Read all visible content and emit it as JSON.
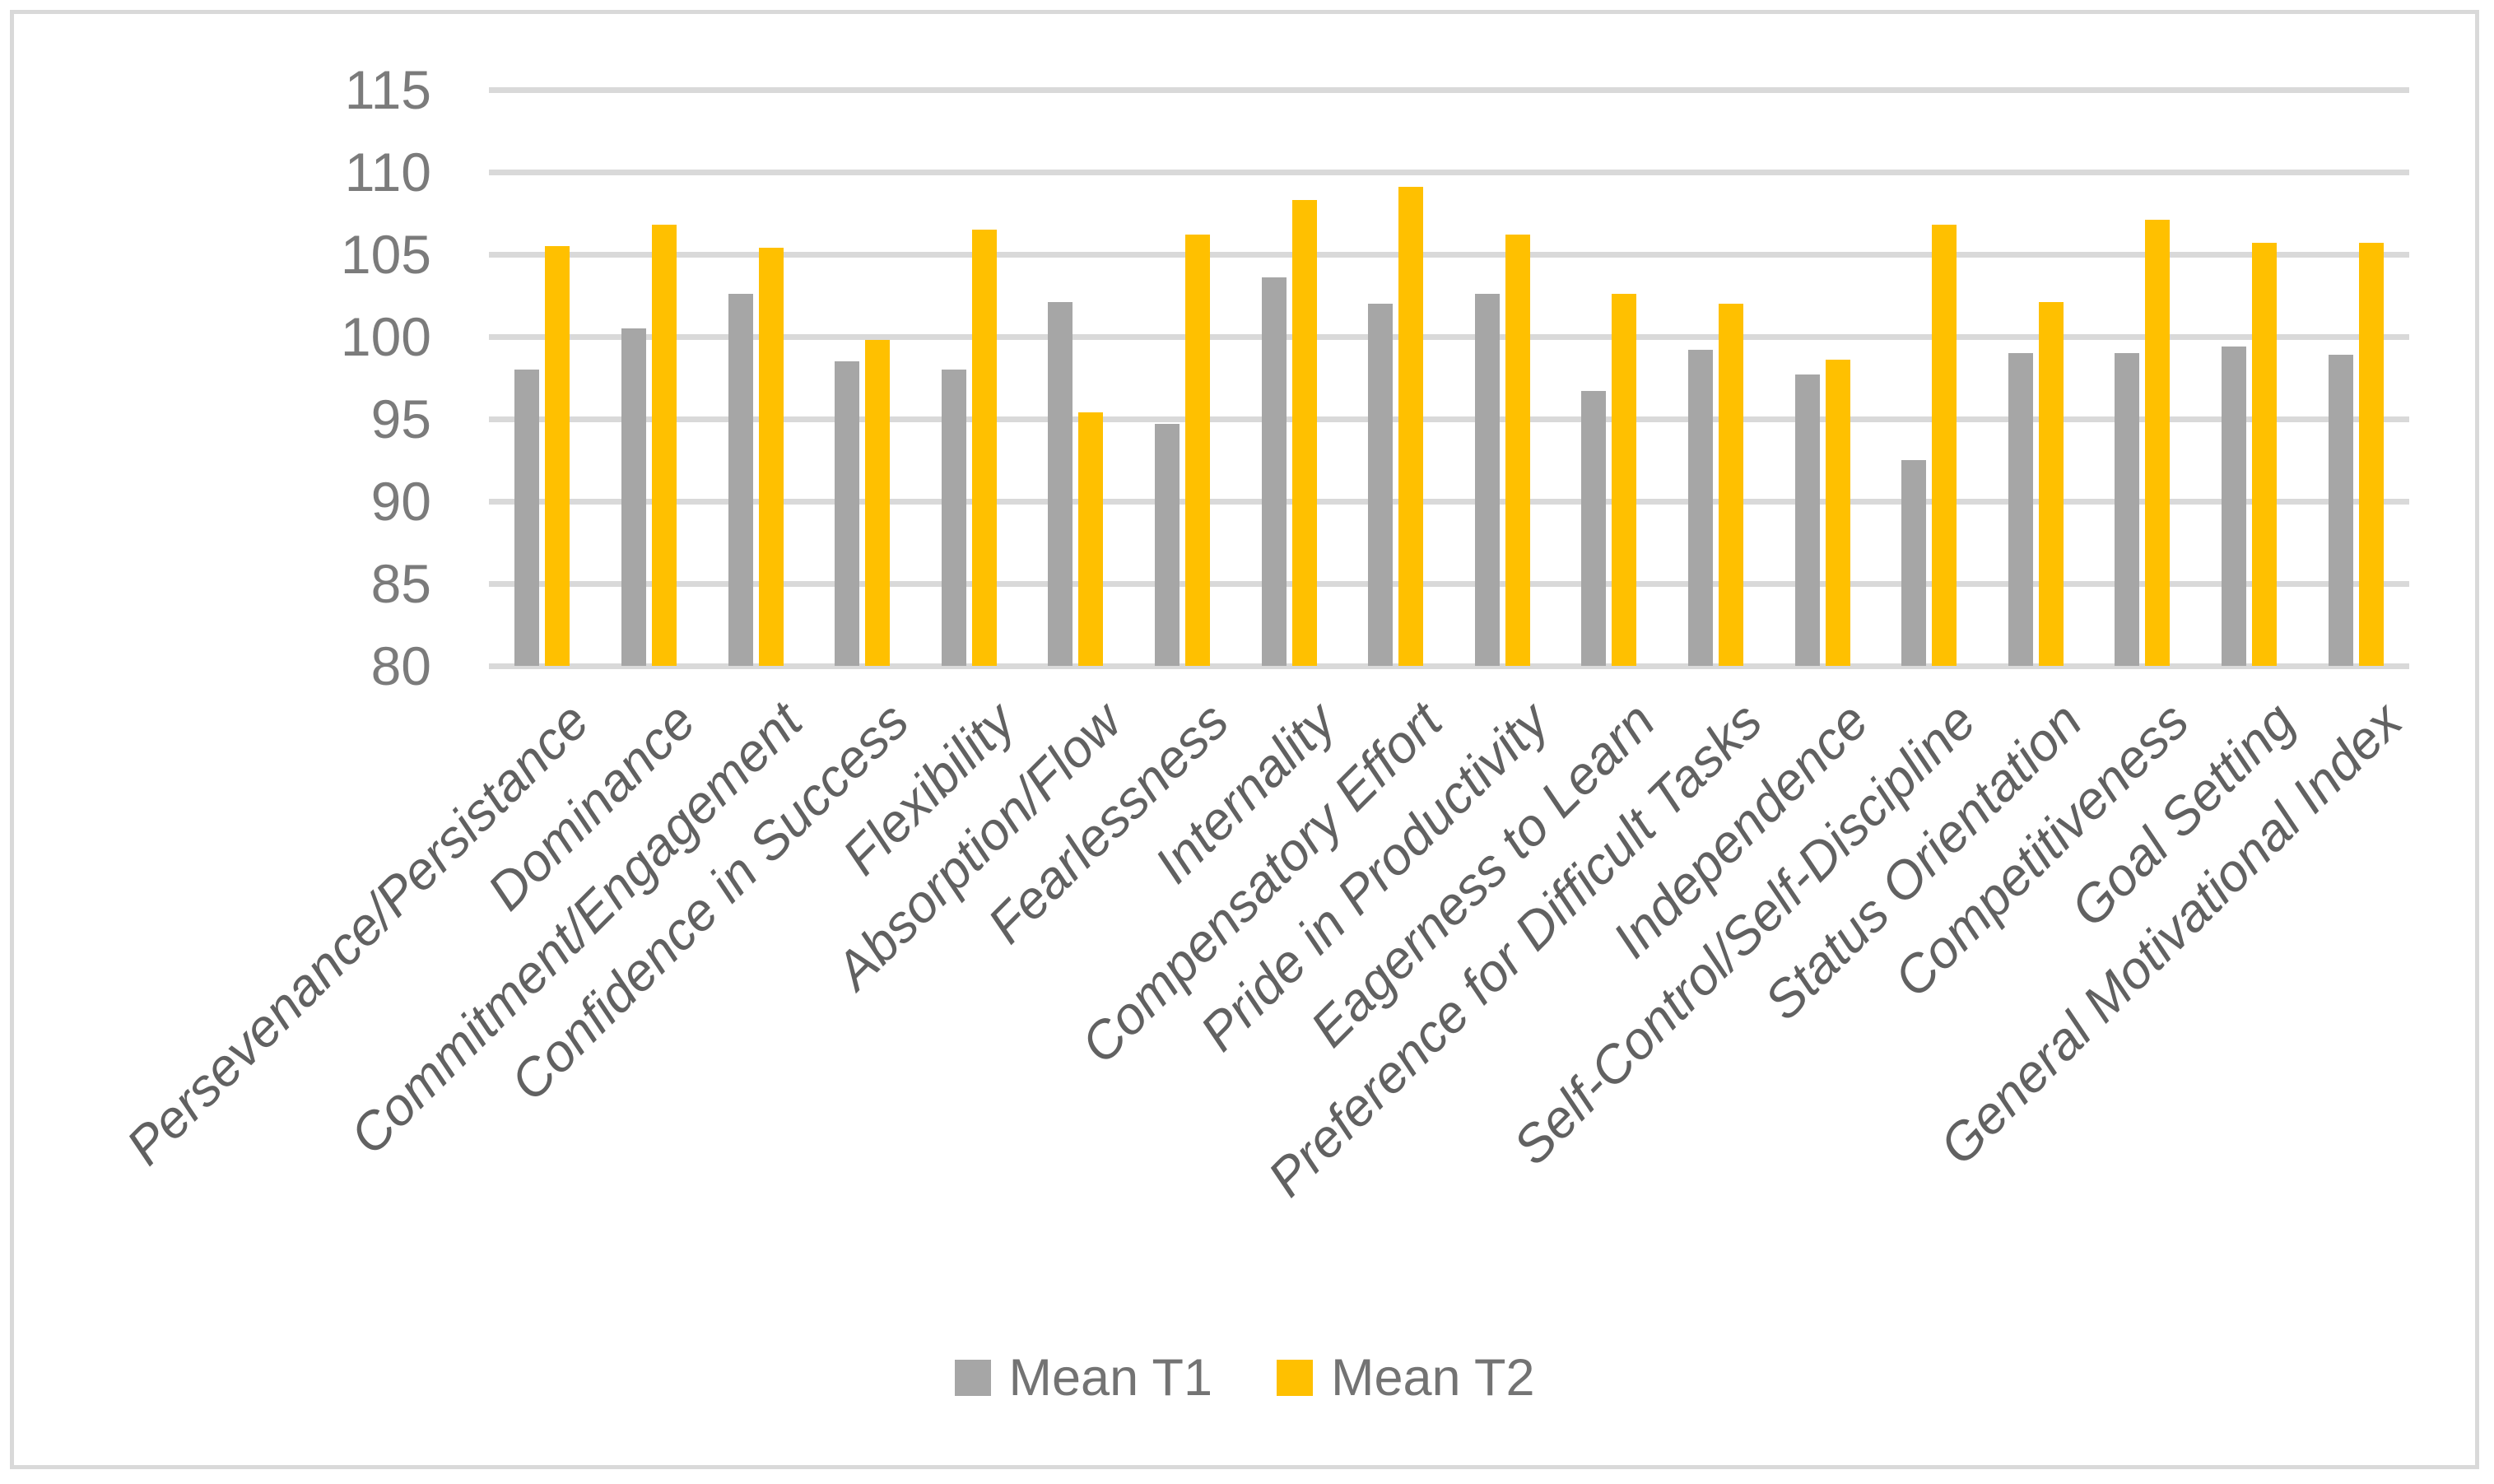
{
  "chart_data": {
    "type": "bar",
    "title": "",
    "xlabel": "",
    "ylabel": "",
    "categories": [
      "Persevenance/Persistance",
      "Dominance",
      "Commitment/Engagement",
      "Confidence in Success",
      "Flexibility",
      "Absorption/Flow",
      "Fearlessness",
      "Internality",
      "Compensatory Effort",
      "Pride in Productivity",
      "Eagerness to Learn",
      "Preference for Difficult Tasks",
      "Independence",
      "Self-Control/Self-Discipline",
      "Status Orientation",
      "Competitiveness",
      "Goal Setting",
      "General Motivational Index"
    ],
    "series": [
      {
        "name": "Mean T1",
        "color": "#A6A6A6",
        "values": [
          98.0,
          100.5,
          102.6,
          98.5,
          98.0,
          102.1,
          94.7,
          103.6,
          102.0,
          102.6,
          96.7,
          99.2,
          97.7,
          92.5,
          99.0,
          99.0,
          99.4,
          98.9
        ]
      },
      {
        "name": "Mean T2",
        "color": "#FFC000",
        "values": [
          105.5,
          106.8,
          105.4,
          99.8,
          106.5,
          95.4,
          106.2,
          108.3,
          109.1,
          106.2,
          102.6,
          102.0,
          98.6,
          106.8,
          102.1,
          107.1,
          105.7,
          105.7
        ]
      }
    ],
    "ylim": [
      80,
      115
    ],
    "yticks": [
      80,
      85,
      90,
      95,
      100,
      105,
      110,
      115
    ],
    "grid": true,
    "legend_position": "bottom-center"
  },
  "palette": {
    "series_mean_t1": "#A6A6A6",
    "series_mean_t2": "#FFC000",
    "gridline": "#D9D9D9",
    "frame_border": "#D9D9D9",
    "axis_tick_text": "#7b7b7b",
    "category_text": "#616161",
    "legend_text": "#737373",
    "background": "#FFFFFF"
  }
}
